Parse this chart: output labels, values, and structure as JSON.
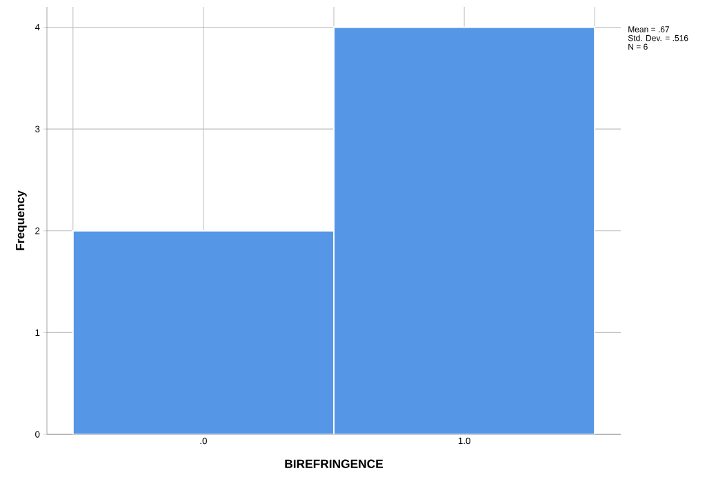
{
  "chart_data": {
    "type": "histogram",
    "xlabel": "BIREFRINGENCE",
    "ylabel": "Frequency",
    "bins": [
      -0.5,
      0.5,
      1.5
    ],
    "values": [
      2,
      4
    ],
    "color": "#5596e6",
    "xlim": [
      -0.6,
      1.6
    ],
    "ylim": [
      0,
      4.2
    ],
    "xticks": [
      {
        "value": -0.5,
        "label": null
      },
      {
        "value": 0,
        "label": ".0"
      },
      {
        "value": 0.5,
        "label": null
      },
      {
        "value": 1,
        "label": "1.0"
      },
      {
        "value": 1.5,
        "label": null
      }
    ],
    "yticks": [
      0,
      1,
      2,
      3,
      4
    ],
    "grid": true,
    "annotations": [
      "Mean = .67",
      "Std. Dev. = .516",
      "N = 6"
    ]
  }
}
